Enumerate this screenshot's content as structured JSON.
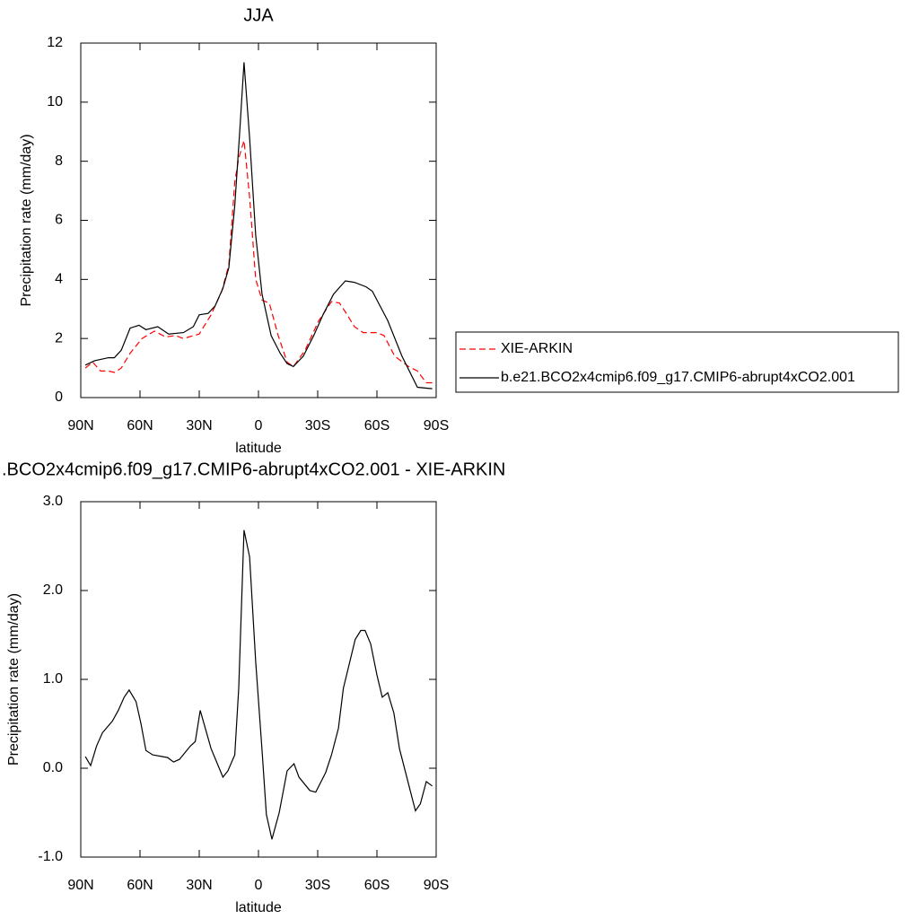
{
  "chart_data": [
    {
      "type": "line",
      "title": "JJA",
      "xlabel": "latitude",
      "ylabel": "Precipitation rate (mm/day)",
      "xlim": [
        90,
        -90
      ],
      "xticks": [
        {
          "value": 90,
          "label": "90N"
        },
        {
          "value": 60,
          "label": "60N"
        },
        {
          "value": 30,
          "label": "30N"
        },
        0,
        {
          "value": -30,
          "label": "30S"
        },
        {
          "value": -60,
          "label": "60S"
        },
        {
          "value": -90,
          "label": "90S"
        }
      ],
      "ylim": [
        0,
        12
      ],
      "yticks": [
        0,
        2,
        4,
        6,
        8,
        10,
        12
      ],
      "legend": "right",
      "series": [
        {
          "name": "XIE-ARKIN",
          "color": "#ff0000",
          "linestyle": "dashed",
          "x": [
            87.7,
            84,
            80,
            76,
            73,
            69.5,
            65,
            59,
            52.7,
            47,
            42,
            38,
            30,
            24,
            18.6,
            15,
            12,
            10,
            7.3,
            4.5,
            1.4,
            -1.8,
            -5.5,
            -10,
            -14.5,
            -17.7,
            -23.6,
            -30.5,
            -37,
            -41,
            -44,
            -48.6,
            -53,
            -60,
            -63.6,
            -69,
            -76,
            -80.5,
            -85,
            -88
          ],
          "values": [
            1.0,
            1.2,
            0.9,
            0.9,
            0.85,
            1.0,
            1.5,
            2.0,
            2.25,
            2.05,
            2.1,
            2.0,
            2.15,
            2.8,
            3.6,
            4.5,
            7.3,
            8.1,
            8.7,
            6.8,
            4.0,
            3.3,
            3.2,
            2.1,
            1.2,
            1.05,
            1.6,
            2.6,
            3.25,
            3.2,
            2.9,
            2.4,
            2.2,
            2.2,
            2.1,
            1.4,
            1.05,
            0.9,
            0.5,
            0.5
          ]
        },
        {
          "name": "b.e21.BCO2x4cmip6.f09_g17.CMIP6-abrupt4xCO2.001",
          "color": "#000000",
          "linestyle": "solid",
          "x": [
            87.7,
            83,
            76,
            73,
            69.5,
            65,
            60.5,
            57,
            51,
            45.5,
            38,
            33,
            30,
            25.5,
            22,
            18,
            15,
            12,
            9.5,
            7.3,
            4.5,
            1.4,
            -1.8,
            -6.4,
            -11,
            -14.5,
            -17.7,
            -22.7,
            -28,
            -32.7,
            -38,
            -44,
            -48.6,
            -54.5,
            -57.7,
            -65.5,
            -72.7,
            -80.5,
            -88
          ],
          "values": [
            1.1,
            1.25,
            1.35,
            1.35,
            1.6,
            2.35,
            2.45,
            2.3,
            2.4,
            2.15,
            2.2,
            2.4,
            2.8,
            2.85,
            3.1,
            3.7,
            4.4,
            6.5,
            9.0,
            11.35,
            8.8,
            5.5,
            3.5,
            2.1,
            1.5,
            1.15,
            1.05,
            1.4,
            2.1,
            2.8,
            3.5,
            3.95,
            3.9,
            3.75,
            3.6,
            2.6,
            1.4,
            0.35,
            0.3
          ]
        }
      ]
    },
    {
      "type": "line",
      "title": ".BCO2x4cmip6.f09_g17.CMIP6-abrupt4xCO2.001 - XIE-ARKIN",
      "xlabel": "latitude",
      "ylabel": "Precipitation rate (mm/day)",
      "xlim": [
        90,
        -90
      ],
      "xticks": [
        {
          "value": 90,
          "label": "90N"
        },
        {
          "value": 60,
          "label": "60N"
        },
        {
          "value": 30,
          "label": "30N"
        },
        0,
        {
          "value": -30,
          "label": "30S"
        },
        {
          "value": -60,
          "label": "60S"
        },
        {
          "value": -90,
          "label": "90S"
        }
      ],
      "ylim": [
        -1,
        3
      ],
      "yticks": [
        {
          "value": -1,
          "label": "-1.0"
        },
        {
          "value": 0,
          "label": "0.0"
        },
        {
          "value": 1,
          "label": "1.0"
        },
        {
          "value": 2,
          "label": "2.0"
        },
        {
          "value": 3,
          "label": "3.0"
        }
      ],
      "series": [
        {
          "color": "#000000",
          "linestyle": "solid",
          "x": [
            87.7,
            85,
            82,
            79,
            74,
            71,
            68,
            65.5,
            62,
            59.5,
            57,
            53.6,
            46,
            43,
            40,
            34.5,
            32,
            29.5,
            24,
            18,
            15.5,
            12,
            10,
            7.3,
            4.5,
            1.4,
            -1.8,
            -4,
            -6.8,
            -10.5,
            -14.5,
            -18,
            -20.5,
            -26,
            -29,
            -34,
            -37,
            -40.5,
            -43,
            -49,
            -51.8,
            -54,
            -56.8,
            -60,
            -62.7,
            -65.5,
            -68.6,
            -71.4,
            -79.5,
            -82,
            -85,
            -88
          ],
          "values": [
            0.13,
            0.03,
            0.25,
            0.4,
            0.53,
            0.65,
            0.8,
            0.88,
            0.75,
            0.5,
            0.2,
            0.15,
            0.12,
            0.07,
            0.1,
            0.25,
            0.3,
            0.65,
            0.22,
            -0.1,
            -0.03,
            0.15,
            0.9,
            2.68,
            2.38,
            1.2,
            0.2,
            -0.52,
            -0.8,
            -0.5,
            -0.03,
            0.05,
            -0.1,
            -0.25,
            -0.27,
            -0.05,
            0.15,
            0.45,
            0.9,
            1.45,
            1.55,
            1.55,
            1.4,
            1.05,
            0.8,
            0.85,
            0.62,
            0.22,
            -0.48,
            -0.4,
            -0.15,
            -0.2
          ]
        }
      ]
    }
  ]
}
